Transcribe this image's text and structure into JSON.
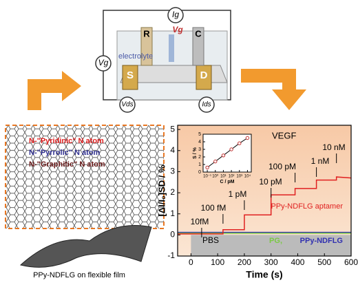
{
  "device": {
    "ig": "Ig",
    "vg_top": "Vg",
    "vg_left": "Vg",
    "r": "R",
    "c": "C",
    "s": "S",
    "d": "D",
    "electrolyte": "electrolyte",
    "vds": "Vds",
    "ids": "Ids"
  },
  "atoms": {
    "pyridinic": "N-\"Pyridinic\" N atom",
    "pyrrolic": "N-\"Pyrrolic\" N atom",
    "graphitic": "N-\"Graphitic\" N atom"
  },
  "film_caption": "PPy-NDFLG on flexible film",
  "chart_data": [
    {
      "type": "line",
      "xlabel": "Time (s)",
      "ylabel": "[ΔI/I₀]SD / %",
      "x": [
        -50,
        120,
        120,
        200,
        200,
        300,
        300,
        390,
        390,
        470,
        470,
        545,
        545,
        600
      ],
      "series": [
        {
          "name": "PPy-NDFLG aptamer",
          "color": "#e02020",
          "values": [
            0.05,
            0.05,
            0.25,
            0.25,
            0.95,
            0.95,
            1.9,
            1.9,
            2.2,
            2.2,
            2.6,
            2.6,
            2.75,
            2.7
          ]
        },
        {
          "name": "PG,",
          "color": "#7ac943",
          "values": [
            0.08,
            0.08,
            0.08,
            0.08,
            0.08,
            0.08,
            0.08,
            0.08,
            0.08,
            0.08,
            0.08,
            0.08,
            0.08,
            0.08
          ]
        },
        {
          "name": "PPy-NDFLG",
          "color": "#3030b0",
          "values": [
            0.12,
            0.12,
            0.12,
            0.12,
            0.12,
            0.12,
            0.12,
            0.12,
            0.12,
            0.12,
            0.12,
            0.12,
            0.12,
            0.12
          ]
        }
      ],
      "xlim": [
        -50,
        600
      ],
      "xticks": [
        0,
        100,
        200,
        300,
        400,
        500,
        600
      ],
      "ylim": [
        -1,
        5.2
      ],
      "yticks": [
        -1,
        0,
        1,
        2,
        3,
        4,
        5
      ],
      "annotations": [
        "10fM",
        "100 fM",
        "1 pM",
        "10 pM",
        "100 pM",
        "1 nM",
        "10 nM"
      ],
      "target": "VEGF",
      "buffer": "PBS"
    },
    {
      "type": "scatter",
      "xlabel": "C / pM",
      "ylabel": "S / %",
      "log_x": true,
      "x": [
        0.1,
        1,
        10,
        100,
        1000,
        10000
      ],
      "values": [
        0.6,
        1.4,
        2.2,
        3.0,
        3.8,
        4.5
      ],
      "color": "#c03030",
      "xlim": [
        0.03,
        30000
      ],
      "xticks": [
        {
          "value": 0.1,
          "label": "10⁻¹"
        },
        {
          "value": 1,
          "label": "10⁰"
        },
        {
          "value": 10,
          "label": "10¹"
        },
        {
          "value": 100,
          "label": "10²"
        },
        {
          "value": 1000,
          "label": "10³"
        },
        {
          "value": 10000,
          "label": "10⁴"
        }
      ],
      "ylim": [
        0,
        5
      ],
      "yticks": [
        0,
        1,
        2,
        3,
        4,
        5
      ]
    }
  ]
}
